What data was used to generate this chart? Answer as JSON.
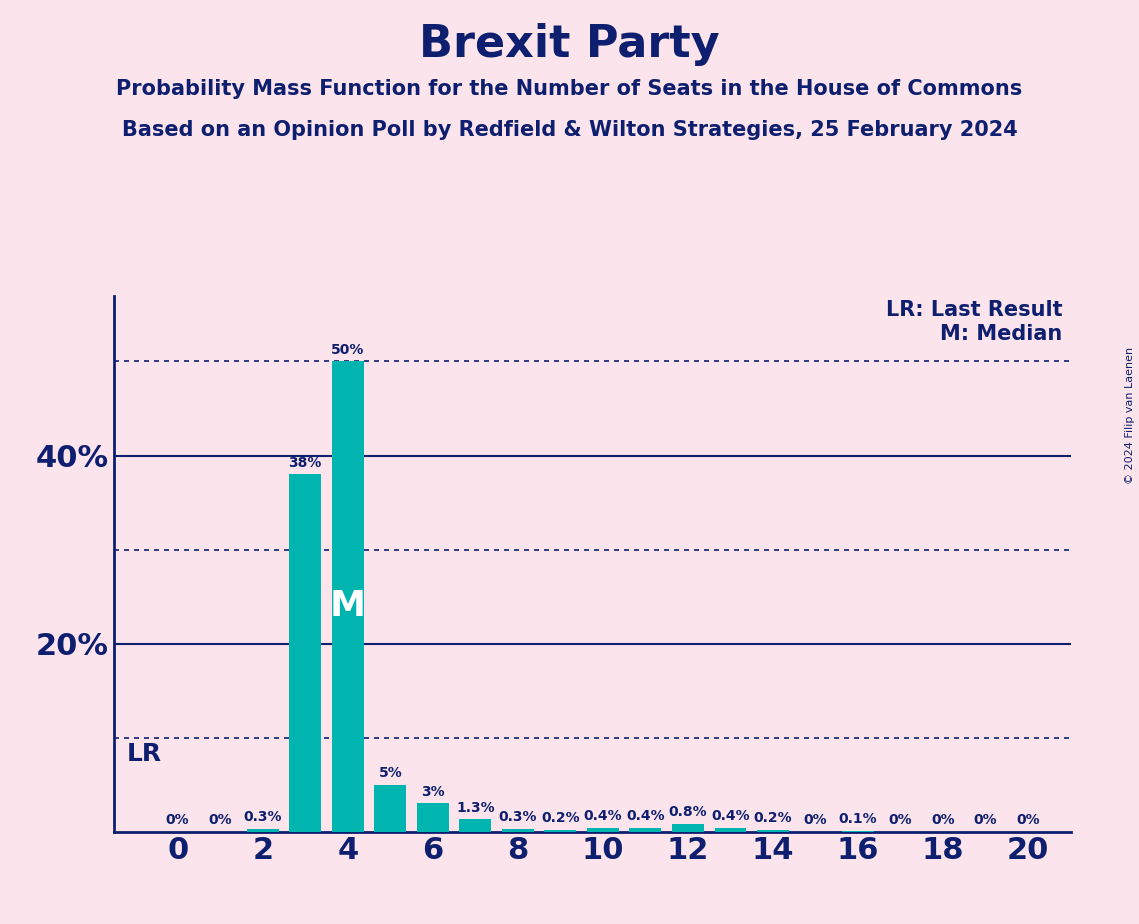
{
  "title": "Brexit Party",
  "subtitle1": "Probability Mass Function for the Number of Seats in the House of Commons",
  "subtitle2": "Based on an Opinion Poll by Redfield & Wilton Strategies, 25 February 2024",
  "copyright": "© 2024 Filip van Laenen",
  "background_color": "#fce4ec",
  "bar_color": "#00b5b0",
  "title_color": "#0d1f6e",
  "seats": [
    0,
    1,
    2,
    3,
    4,
    5,
    6,
    7,
    8,
    9,
    10,
    11,
    12,
    13,
    14,
    15,
    16,
    17,
    18,
    19,
    20
  ],
  "probabilities": [
    0.0,
    0.0,
    0.3,
    38.0,
    50.0,
    5.0,
    3.0,
    1.3,
    0.3,
    0.2,
    0.4,
    0.4,
    0.8,
    0.4,
    0.2,
    0.0,
    0.1,
    0.0,
    0.0,
    0.0,
    0.0
  ],
  "bar_labels": [
    "0%",
    "0%",
    "0.3%",
    "38%",
    "50%",
    "5%",
    "3%",
    "1.3%",
    "0.3%",
    "0.2%",
    "0.4%",
    "0.4%",
    "0.8%",
    "0.4%",
    "0.2%",
    "0%",
    "0.1%",
    "0%",
    "0%",
    "0%",
    "0%"
  ],
  "median_seat": 4,
  "lr_seat": 1,
  "ylim": [
    0,
    57
  ],
  "solid_yticks": [
    20,
    40
  ],
  "dotted_yticks": [
    10,
    30,
    50
  ],
  "lr_line_y": 10,
  "legend_lr": "LR: Last Result",
  "legend_m": "M: Median",
  "median_label": "M",
  "xtick_positions": [
    0,
    2,
    4,
    6,
    8,
    10,
    12,
    14,
    16,
    18,
    20
  ],
  "xtick_labels": [
    "0",
    "2",
    "4",
    "6",
    "8",
    "10",
    "12",
    "14",
    "16",
    "18",
    "20"
  ],
  "ytick_positions": [
    20,
    40
  ],
  "ytick_labels": [
    "20%",
    "40%"
  ],
  "bar_label_fontsize": 10,
  "title_fontsize": 32,
  "subtitle_fontsize": 15,
  "ytick_fontsize": 22,
  "xtick_fontsize": 22,
  "lr_label_fontsize": 18,
  "legend_fontsize": 15,
  "median_fontsize": 26,
  "copyright_fontsize": 8
}
